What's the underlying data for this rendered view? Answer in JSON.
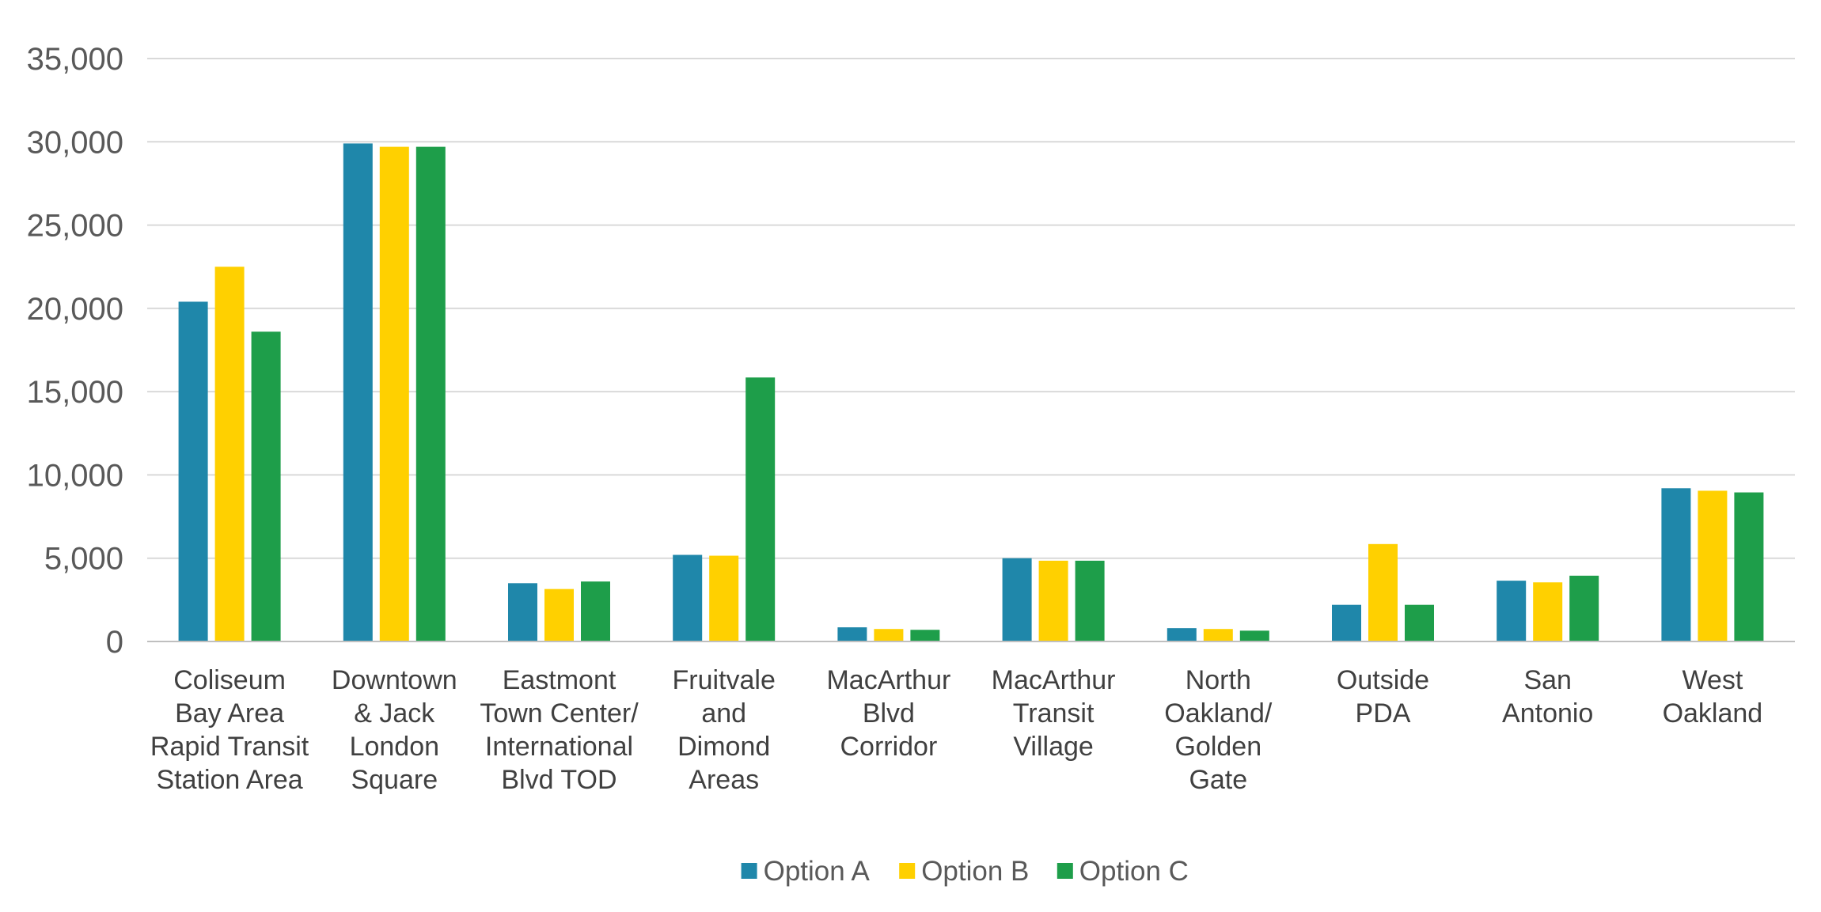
{
  "chart_data": {
    "type": "bar",
    "title": "",
    "xlabel": "",
    "ylabel": "",
    "ylim": [
      0,
      35000
    ],
    "yticks": [
      0,
      5000,
      10000,
      15000,
      20000,
      25000,
      30000,
      35000
    ],
    "ytick_labels": [
      "0",
      "5,000",
      "10,000",
      "15,000",
      "20,000",
      "25,000",
      "30,000",
      "35,000"
    ],
    "grid": true,
    "legend_position": "bottom",
    "categories": [
      [
        "Coliseum",
        "Bay Area",
        "Rapid Transit",
        "Station Area"
      ],
      [
        "Downtown",
        "& Jack",
        "London",
        "Square"
      ],
      [
        "Eastmont",
        "Town Center/",
        "International",
        "Blvd TOD"
      ],
      [
        "Fruitvale",
        "and",
        "Dimond",
        "Areas"
      ],
      [
        "MacArthur",
        "Blvd",
        "Corridor"
      ],
      [
        "MacArthur",
        "Transit",
        "Village"
      ],
      [
        "North",
        "Oakland/",
        "Golden",
        "Gate"
      ],
      [
        "Outside",
        "PDA"
      ],
      [
        "San",
        "Antonio"
      ],
      [
        "West",
        "Oakland"
      ]
    ],
    "series": [
      {
        "name": "Option A",
        "color": "#1F87AA",
        "values": [
          20400,
          29900,
          3500,
          5200,
          850,
          5000,
          800,
          2200,
          3650,
          9200
        ]
      },
      {
        "name": "Option B",
        "color": "#FFD000",
        "values": [
          22500,
          29700,
          3150,
          5150,
          750,
          4850,
          750,
          5850,
          3550,
          9050
        ]
      },
      {
        "name": "Option C",
        "color": "#1E9E4A",
        "values": [
          18600,
          29700,
          3600,
          15850,
          700,
          4850,
          650,
          2200,
          3950,
          8950
        ]
      }
    ]
  }
}
